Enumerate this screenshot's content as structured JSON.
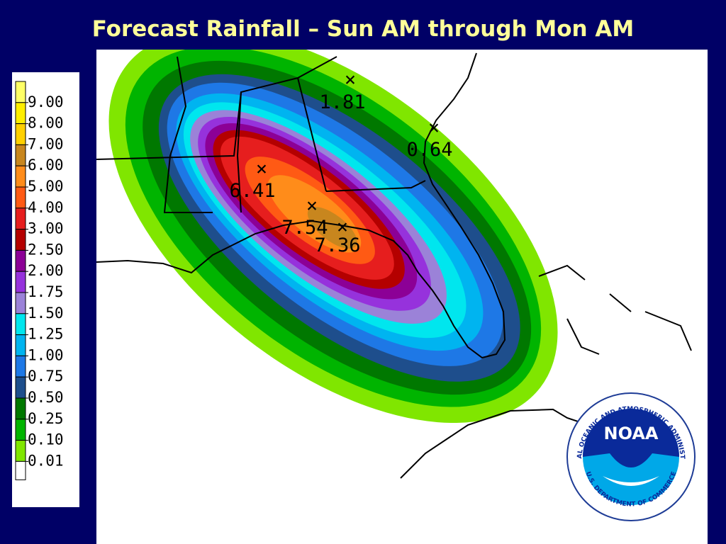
{
  "header": {
    "title": "Forecast Rainfall – Sun AM through Mon AM"
  },
  "legend": {
    "colors": [
      "#ffff66",
      "#ffee00",
      "#ffd000",
      "#c8861e",
      "#ff8c1a",
      "#ff5a14",
      "#e61e1e",
      "#b40000",
      "#8c0096",
      "#9632dc",
      "#9b82d8",
      "#00e6ee",
      "#00b4f0",
      "#1e78e6",
      "#1e4e8c",
      "#007800",
      "#00b400",
      "#80e600",
      "#ffffff"
    ],
    "labels": [
      "9.00",
      "8.00",
      "7.00",
      "6.00",
      "5.00",
      "4.00",
      "3.00",
      "2.50",
      "2.00",
      "1.75",
      "1.50",
      "1.25",
      "1.00",
      "0.75",
      "0.50",
      "0.25",
      "0.10",
      "0.01"
    ]
  },
  "points": [
    {
      "label": "1.81"
    },
    {
      "label": "0.64"
    },
    {
      "label": "6.41"
    },
    {
      "label": "7.54"
    },
    {
      "label": "7.36"
    }
  ],
  "logo": {
    "text": "NOAA",
    "ring_top": "NATIONAL OCEANIC AND ATMOSPHERIC ADMINISTRATION",
    "ring_bottom": "U.S. DEPARTMENT OF COMMERCE"
  }
}
